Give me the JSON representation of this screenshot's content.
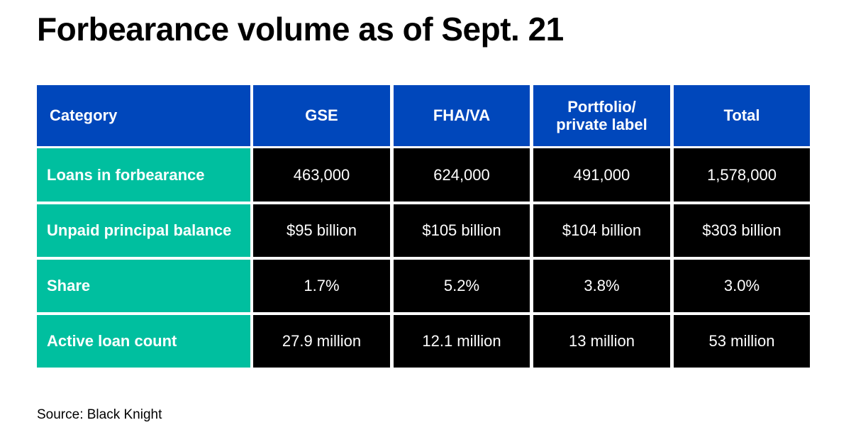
{
  "title": "Forbearance volume as of Sept. 21",
  "source": "Source: Black Knight",
  "colors": {
    "header": "#0047bb",
    "category": "#00bf9f",
    "cell": "#000000"
  },
  "chart_data": {
    "type": "table",
    "title": "Forbearance volume as of Sept. 21",
    "columns": [
      "Category",
      "GSE",
      "FHA/VA",
      "Portfolio/ private label",
      "Total"
    ],
    "rows": [
      [
        "Loans in forbearance",
        "463,000",
        "624,000",
        "491,000",
        "1,578,000"
      ],
      [
        "Unpaid principal balance",
        "$95 billion",
        "$105 billion",
        "$104 billion",
        "$303 billion"
      ],
      [
        "Share",
        "1.7%",
        "5.2%",
        "3.8%",
        "3.0%"
      ],
      [
        "Active loan count",
        "27.9 million",
        "12.1 million",
        "13 million",
        "53 million"
      ]
    ]
  }
}
